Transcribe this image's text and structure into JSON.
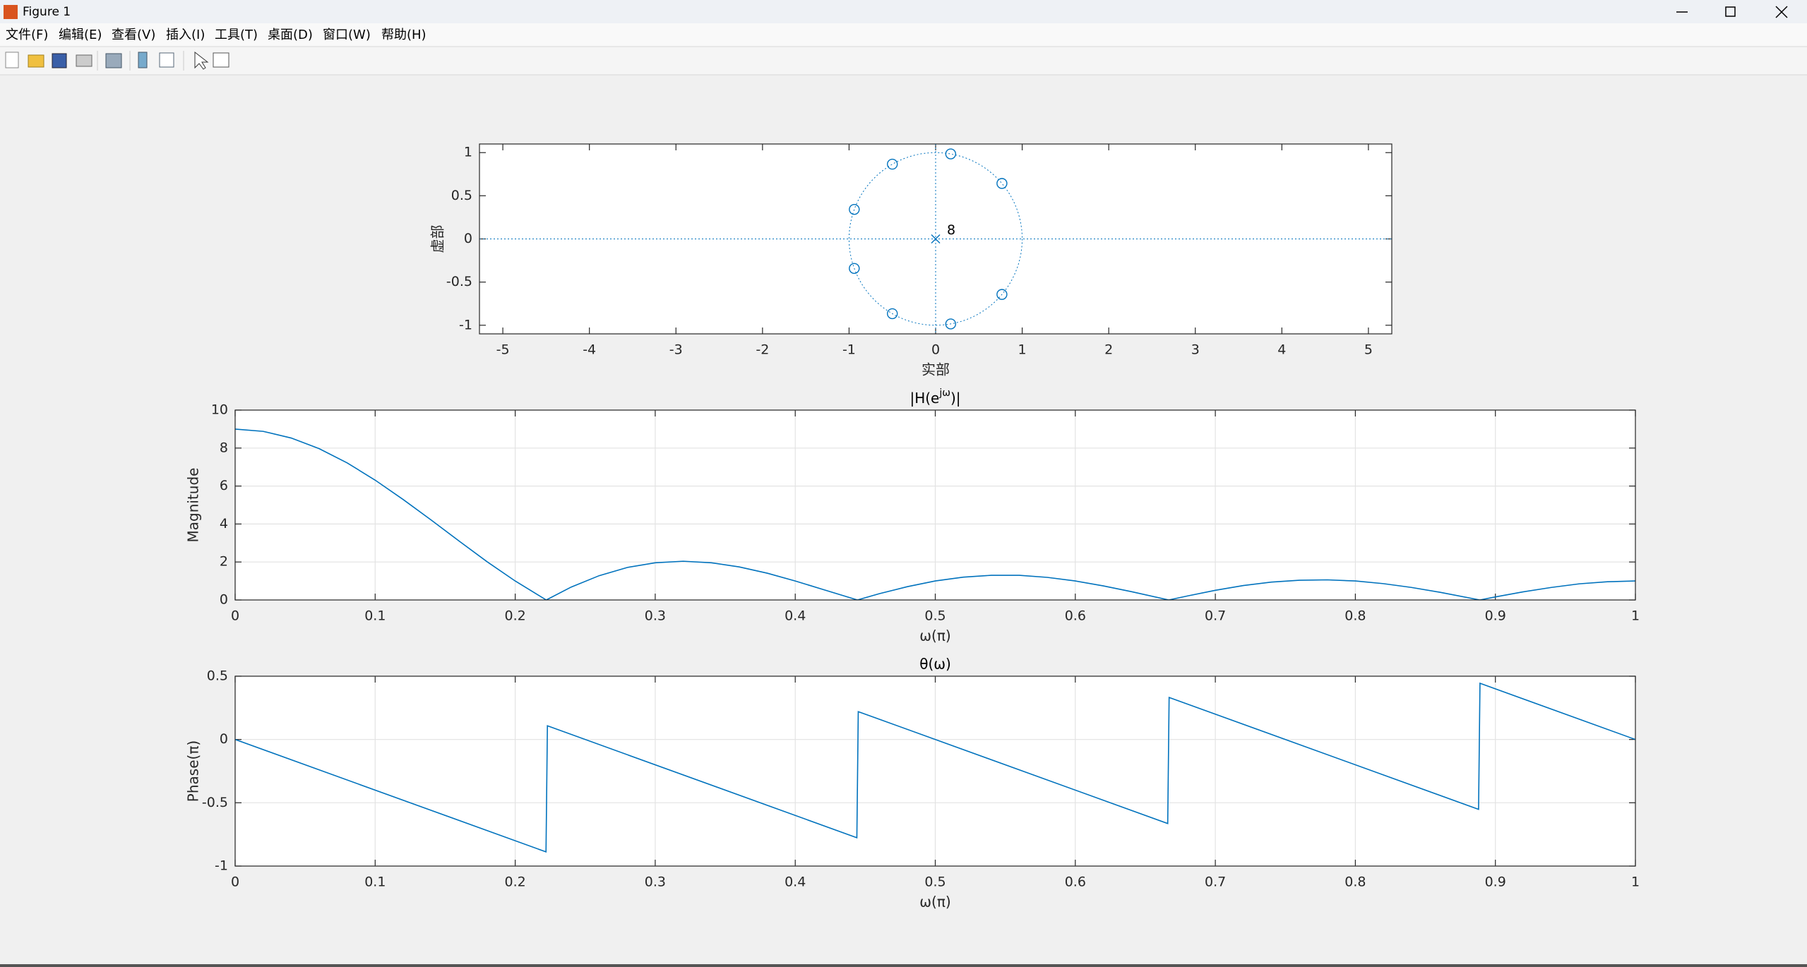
{
  "window": {
    "title": "Figure 1",
    "menu": [
      "文件(F)",
      "编辑(E)",
      "查看(V)",
      "插入(I)",
      "工具(T)",
      "桌面(D)",
      "窗口(W)",
      "帮助(H)"
    ]
  },
  "chart_data": [
    {
      "type": "pzmap",
      "xlabel": "实部",
      "ylabel": "虚部",
      "color": "#0072bd",
      "zeros": {
        "x": [
          0.766,
          0.174,
          -0.5,
          -0.94,
          -0.94,
          -0.5,
          0.174,
          0.766
        ],
        "y": [
          0.643,
          0.985,
          0.866,
          0.342,
          -0.342,
          -0.866,
          -0.985,
          -0.643
        ]
      },
      "poles": {
        "x": [
          0
        ],
        "y": [
          0
        ],
        "label": "8"
      },
      "xlim": [
        -5.27,
        5.27
      ],
      "ylim": [
        -1.1,
        1.1
      ],
      "xticks": [
        -5,
        -4,
        -3,
        -2,
        -1,
        0,
        1,
        2,
        3,
        4,
        5
      ],
      "yticks": [
        -1,
        -0.5,
        0,
        0.5,
        1
      ],
      "grid": false
    },
    {
      "type": "line",
      "title": "|H(e^{jω})|",
      "xlabel": "ω(π)",
      "ylabel": "Magnitude",
      "color": "#0072bd",
      "x": [
        0,
        0.02,
        0.04,
        0.06,
        0.08,
        0.1,
        0.12,
        0.14,
        0.16,
        0.18,
        0.2,
        0.2222,
        0.24,
        0.26,
        0.28,
        0.3,
        0.32,
        0.34,
        0.36,
        0.38,
        0.4,
        0.42,
        0.4444,
        0.46,
        0.48,
        0.5,
        0.52,
        0.54,
        0.56,
        0.58,
        0.6,
        0.62,
        0.64,
        0.6667,
        0.68,
        0.7,
        0.72,
        0.74,
        0.76,
        0.78,
        0.8,
        0.82,
        0.84,
        0.86,
        0.8889,
        0.9,
        0.92,
        0.94,
        0.96,
        0.98,
        1
      ],
      "values": [
        9,
        8.88,
        8.53,
        7.97,
        7.22,
        6.31,
        5.29,
        4.21,
        3.1,
        2.01,
        1,
        0,
        0.68,
        1.28,
        1.71,
        1.96,
        2.04,
        1.96,
        1.74,
        1.41,
        1,
        0.55,
        0,
        0.33,
        0.7,
        1,
        1.2,
        1.3,
        1.3,
        1.19,
        1,
        0.74,
        0.44,
        0,
        0.21,
        0.51,
        0.76,
        0.94,
        1.04,
        1.06,
        1,
        0.86,
        0.66,
        0.41,
        0,
        0.16,
        0.43,
        0.66,
        0.85,
        0.96,
        1
      ],
      "xlim": [
        0,
        1
      ],
      "ylim": [
        0,
        10
      ],
      "xticks": [
        0,
        0.1,
        0.2,
        0.3,
        0.4,
        0.5,
        0.6,
        0.7,
        0.8,
        0.9,
        1
      ],
      "yticks": [
        0,
        2,
        4,
        6,
        8,
        10
      ],
      "grid": true
    },
    {
      "type": "line",
      "title": "θ(ω)",
      "xlabel": "ω(π)",
      "ylabel": "Phase(π)",
      "color": "#0072bd",
      "x": [
        0,
        0.222,
        0.223,
        0.444,
        0.445,
        0.666,
        0.667,
        0.888,
        0.889,
        1
      ],
      "values": [
        0,
        -0.888,
        0.108,
        -0.776,
        0.22,
        -0.664,
        0.332,
        -0.552,
        0.444,
        0
      ],
      "xlim": [
        0,
        1
      ],
      "ylim": [
        -1,
        0.5
      ],
      "xticks": [
        0,
        0.1,
        0.2,
        0.3,
        0.4,
        0.5,
        0.6,
        0.7,
        0.8,
        0.9,
        1
      ],
      "yticks": [
        -1,
        -0.5,
        0,
        0.5
      ],
      "grid": true
    }
  ]
}
